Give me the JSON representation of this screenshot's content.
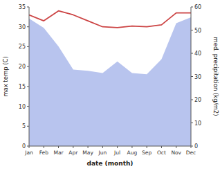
{
  "chart_data": {
    "type": "line",
    "categories": [
      "Jan",
      "Feb",
      "Mar",
      "Apr",
      "May",
      "Jun",
      "Jul",
      "Aug",
      "Sep",
      "Oct",
      "Nov",
      "Dec"
    ],
    "xlabel": "date (month)",
    "ylabel": "max temp (C)",
    "y2label": "med. precipitation (kg/m2)",
    "series": [
      {
        "type": "area",
        "axis": "y2",
        "color": "#b8c4ee",
        "values": [
          55.0,
          51.0,
          43.0,
          33.0,
          32.5,
          31.5,
          36.5,
          31.5,
          31.0,
          37.5,
          53.0,
          55.5
        ]
      },
      {
        "type": "line",
        "color": "#cc4444",
        "values": [
          33.0,
          31.5,
          34.0,
          33.0,
          31.5,
          30.0,
          29.8,
          30.2,
          30.0,
          30.5,
          33.5,
          33.5
        ]
      }
    ],
    "ylim": [
      0,
      35
    ],
    "yticks": [
      0,
      5,
      10,
      15,
      20,
      25,
      30,
      35
    ],
    "y2lim": [
      0,
      60
    ],
    "y2ticks": [
      0,
      10,
      20,
      30,
      40,
      50,
      60
    ],
    "grid": false
  }
}
